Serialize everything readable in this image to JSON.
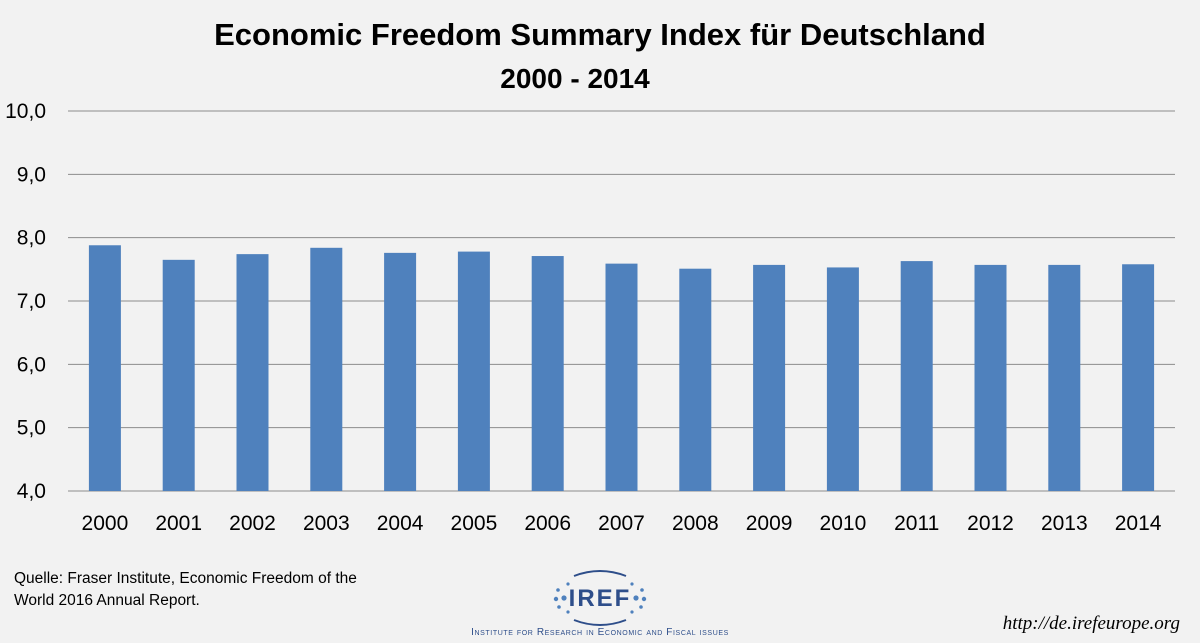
{
  "chart_data": {
    "type": "bar",
    "title": "Economic Freedom Summary Index für Deutschland",
    "subtitle": "2000 - 2014",
    "xlabel": "",
    "ylabel": "",
    "categories": [
      "2000",
      "2001",
      "2002",
      "2003",
      "2004",
      "2005",
      "2006",
      "2007",
      "2008",
      "2009",
      "2010",
      "2011",
      "2012",
      "2013",
      "2014"
    ],
    "values": [
      7.88,
      7.65,
      7.74,
      7.84,
      7.76,
      7.78,
      7.71,
      7.59,
      7.51,
      7.57,
      7.53,
      7.63,
      7.57,
      7.57,
      7.58
    ],
    "ylim": [
      4.0,
      10.0
    ],
    "yticks": [
      "4,0",
      "5,0",
      "6,0",
      "7,0",
      "8,0",
      "9,0",
      "10,0"
    ],
    "grid": true,
    "bar_color": "#4f81bd",
    "grid_color": "#8c8c8c"
  },
  "footer": {
    "source_line1": "Quelle: Fraser Institute, Economic Freedom of the",
    "source_line2": "World 2016 Annual Report.",
    "url": "http://de.irefeurope.org",
    "logo_text": "IREF",
    "tagline": "Institute for Research in Economic and Fiscal issues",
    "logo_color": "#2e4e8a"
  }
}
